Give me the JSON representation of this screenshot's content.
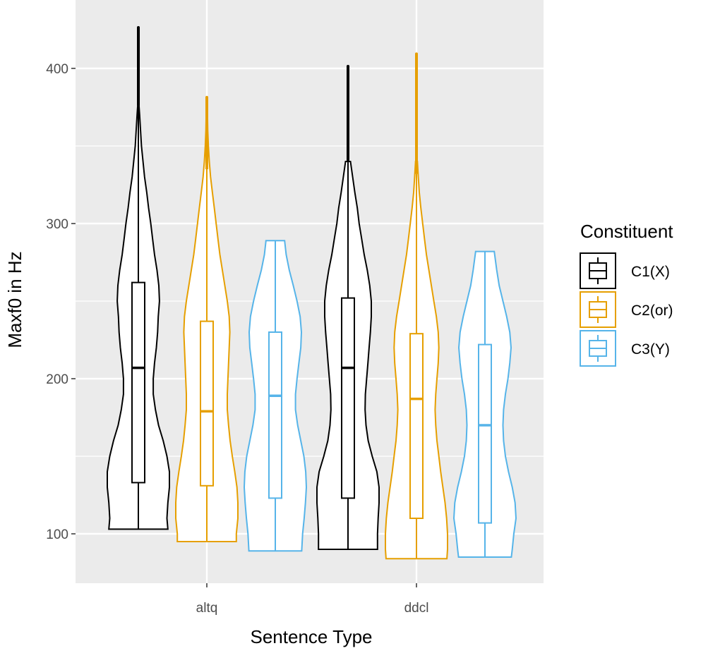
{
  "chart_data": {
    "type": "violin",
    "title": "",
    "xlabel": "Sentence Type",
    "ylabel": "Maxf0 in Hz",
    "ylim": [
      70,
      430
    ],
    "yticks": [
      100,
      200,
      300,
      400
    ],
    "categories": [
      "altq",
      "ddcl"
    ],
    "grid": true,
    "panel_background": "#ebebeb",
    "legend": {
      "title": "Constituent",
      "position": "right"
    },
    "series": [
      {
        "name": "C1(X)",
        "color": "#000000",
        "groups": [
          {
            "category": "altq",
            "min": 103,
            "max": 425,
            "q1": 133,
            "median": 207,
            "q3": 262,
            "whisker_low": 103,
            "whisker_high": 376,
            "outliers_high": [
              380,
              390,
              400,
              410,
              418,
              425
            ],
            "density": [
              [
                103,
                0.95
              ],
              [
                110,
                0.92
              ],
              [
                120,
                0.95
              ],
              [
                130,
                1.0
              ],
              [
                140,
                1.0
              ],
              [
                150,
                0.92
              ],
              [
                160,
                0.8
              ],
              [
                170,
                0.65
              ],
              [
                180,
                0.55
              ],
              [
                190,
                0.48
              ],
              [
                200,
                0.48
              ],
              [
                210,
                0.52
              ],
              [
                220,
                0.58
              ],
              [
                230,
                0.62
              ],
              [
                240,
                0.64
              ],
              [
                250,
                0.68
              ],
              [
                260,
                0.66
              ],
              [
                270,
                0.6
              ],
              [
                280,
                0.52
              ],
              [
                290,
                0.46
              ],
              [
                300,
                0.4
              ],
              [
                310,
                0.33
              ],
              [
                320,
                0.27
              ],
              [
                330,
                0.2
              ],
              [
                340,
                0.15
              ],
              [
                350,
                0.1
              ],
              [
                360,
                0.07
              ],
              [
                370,
                0.04
              ],
              [
                376,
                0.02
              ]
            ]
          },
          {
            "category": "ddcl",
            "min": 90,
            "max": 400,
            "q1": 123,
            "median": 207,
            "q3": 252,
            "whisker_low": 90,
            "whisker_high": 340,
            "outliers_high": [
              345,
              355,
              365,
              380,
              400
            ],
            "density": [
              [
                90,
                0.95
              ],
              [
                100,
                0.95
              ],
              [
                110,
                0.97
              ],
              [
                120,
                1.0
              ],
              [
                130,
                1.0
              ],
              [
                140,
                0.93
              ],
              [
                150,
                0.78
              ],
              [
                160,
                0.65
              ],
              [
                170,
                0.58
              ],
              [
                180,
                0.55
              ],
              [
                190,
                0.56
              ],
              [
                200,
                0.6
              ],
              [
                210,
                0.64
              ],
              [
                220,
                0.68
              ],
              [
                230,
                0.72
              ],
              [
                240,
                0.75
              ],
              [
                250,
                0.75
              ],
              [
                260,
                0.7
              ],
              [
                270,
                0.62
              ],
              [
                280,
                0.52
              ],
              [
                290,
                0.44
              ],
              [
                300,
                0.36
              ],
              [
                310,
                0.3
              ],
              [
                320,
                0.22
              ],
              [
                330,
                0.15
              ],
              [
                340,
                0.08
              ]
            ]
          }
        ]
      },
      {
        "name": "C2(or)",
        "color": "#e69f00",
        "groups": [
          {
            "category": "altq",
            "min": 95,
            "max": 380,
            "q1": 131,
            "median": 179,
            "q3": 237,
            "whisker_low": 95,
            "whisker_high": 335,
            "outliers_high": [
              345,
              360,
              375,
              380
            ],
            "density": [
              [
                95,
                0.95
              ],
              [
                100,
                0.95
              ],
              [
                110,
                1.0
              ],
              [
                120,
                1.0
              ],
              [
                130,
                0.97
              ],
              [
                140,
                0.9
              ],
              [
                150,
                0.82
              ],
              [
                160,
                0.75
              ],
              [
                170,
                0.7
              ],
              [
                180,
                0.66
              ],
              [
                190,
                0.66
              ],
              [
                200,
                0.68
              ],
              [
                210,
                0.7
              ],
              [
                220,
                0.72
              ],
              [
                230,
                0.74
              ],
              [
                240,
                0.72
              ],
              [
                250,
                0.66
              ],
              [
                260,
                0.58
              ],
              [
                270,
                0.5
              ],
              [
                280,
                0.42
              ],
              [
                290,
                0.36
              ],
              [
                300,
                0.3
              ],
              [
                310,
                0.24
              ],
              [
                320,
                0.18
              ],
              [
                330,
                0.12
              ],
              [
                340,
                0.08
              ],
              [
                350,
                0.05
              ],
              [
                360,
                0.03
              ],
              [
                370,
                0.02
              ],
              [
                380,
                0.01
              ]
            ]
          },
          {
            "category": "ddcl",
            "min": 84,
            "max": 408,
            "q1": 110,
            "median": 187,
            "q3": 229,
            "whisker_low": 84,
            "whisker_high": 332,
            "outliers_high": [
              340,
              350,
              365,
              385,
              408
            ],
            "density": [
              [
                84,
                0.98
              ],
              [
                90,
                1.0
              ],
              [
                100,
                1.0
              ],
              [
                110,
                0.97
              ],
              [
                120,
                0.92
              ],
              [
                130,
                0.85
              ],
              [
                140,
                0.78
              ],
              [
                150,
                0.72
              ],
              [
                160,
                0.66
              ],
              [
                170,
                0.62
              ],
              [
                180,
                0.6
              ],
              [
                190,
                0.62
              ],
              [
                200,
                0.66
              ],
              [
                210,
                0.7
              ],
              [
                220,
                0.72
              ],
              [
                230,
                0.7
              ],
              [
                240,
                0.64
              ],
              [
                250,
                0.56
              ],
              [
                260,
                0.48
              ],
              [
                270,
                0.4
              ],
              [
                280,
                0.32
              ],
              [
                290,
                0.26
              ],
              [
                300,
                0.2
              ],
              [
                310,
                0.14
              ],
              [
                320,
                0.09
              ],
              [
                330,
                0.06
              ],
              [
                340,
                0.03
              ]
            ]
          }
        ]
      },
      {
        "name": "C3(Y)",
        "color": "#56b4e9",
        "groups": [
          {
            "category": "altq",
            "min": 89,
            "max": 289,
            "q1": 123,
            "median": 189,
            "q3": 230,
            "whisker_low": 89,
            "whisker_high": 289,
            "outliers_high": [],
            "density": [
              [
                89,
                0.85
              ],
              [
                100,
                0.88
              ],
              [
                110,
                0.93
              ],
              [
                120,
                0.97
              ],
              [
                130,
                1.0
              ],
              [
                140,
                0.98
              ],
              [
                150,
                0.92
              ],
              [
                160,
                0.82
              ],
              [
                170,
                0.72
              ],
              [
                180,
                0.65
              ],
              [
                190,
                0.65
              ],
              [
                200,
                0.7
              ],
              [
                210,
                0.76
              ],
              [
                220,
                0.82
              ],
              [
                230,
                0.84
              ],
              [
                240,
                0.8
              ],
              [
                250,
                0.7
              ],
              [
                260,
                0.58
              ],
              [
                270,
                0.45
              ],
              [
                280,
                0.35
              ],
              [
                289,
                0.3
              ]
            ]
          },
          {
            "category": "ddcl",
            "min": 85,
            "max": 282,
            "q1": 107,
            "median": 170,
            "q3": 222,
            "whisker_low": 85,
            "whisker_high": 282,
            "outliers_high": [],
            "density": [
              [
                85,
                0.85
              ],
              [
                90,
                0.88
              ],
              [
                100,
                0.93
              ],
              [
                110,
                1.0
              ],
              [
                120,
                0.97
              ],
              [
                130,
                0.88
              ],
              [
                140,
                0.76
              ],
              [
                150,
                0.66
              ],
              [
                160,
                0.6
              ],
              [
                170,
                0.58
              ],
              [
                180,
                0.6
              ],
              [
                190,
                0.66
              ],
              [
                200,
                0.74
              ],
              [
                210,
                0.8
              ],
              [
                220,
                0.84
              ],
              [
                230,
                0.8
              ],
              [
                240,
                0.7
              ],
              [
                250,
                0.58
              ],
              [
                260,
                0.46
              ],
              [
                270,
                0.38
              ],
              [
                282,
                0.3
              ]
            ]
          }
        ]
      }
    ]
  }
}
